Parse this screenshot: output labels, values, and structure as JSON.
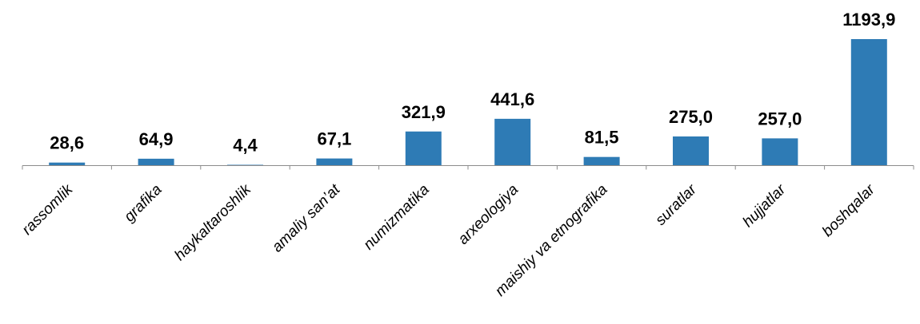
{
  "chart_data": {
    "type": "bar",
    "title": "",
    "xlabel": "",
    "ylabel": "",
    "categories": [
      "rassomlik",
      "grafika",
      "haykaltaroshlik",
      "amaliy san’at",
      "numizmatika",
      "arxeologiya",
      "maishiy va etnografika",
      "suratlar",
      "hujjatlar",
      "boshqalar"
    ],
    "values": [
      28.6,
      64.9,
      4.4,
      67.1,
      321.9,
      441.6,
      81.5,
      275.0,
      257.0,
      1193.9
    ],
    "value_labels": [
      "28,6",
      "64,9",
      "4,4",
      "67,1",
      "321,9",
      "441,6",
      "81,5",
      "275,0",
      "257,0",
      "1193,9"
    ],
    "ylim": [
      0,
      1193.9
    ],
    "grid": false,
    "legend": "none",
    "bar_color": "#2e7bb5"
  }
}
